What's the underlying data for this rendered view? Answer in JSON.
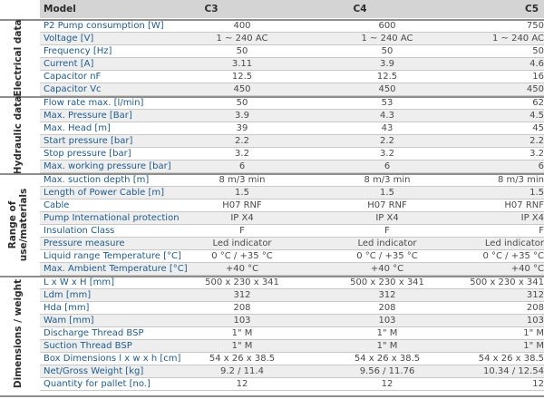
{
  "header": {
    "model_label": "Model",
    "models": [
      "C3",
      "C4",
      "C5"
    ]
  },
  "sections": [
    {
      "label": "Electrical data",
      "rows": [
        {
          "param": "P2 Pump consumption [W]",
          "values": [
            "400",
            "600",
            "750"
          ]
        },
        {
          "param": "Voltage [V]",
          "values": [
            "1 ~ 240 AC",
            "1 ~ 240 AC",
            "1 ~ 240 AC"
          ]
        },
        {
          "param": "Frequency [Hz]",
          "values": [
            "50",
            "50",
            "50"
          ]
        },
        {
          "param": "Current [A]",
          "values": [
            "3.11",
            "3.9",
            "4.6"
          ]
        },
        {
          "param": "Capacitor nF",
          "values": [
            "12.5",
            "12.5",
            "16"
          ]
        },
        {
          "param": "Capacitor Vc",
          "values": [
            "450",
            "450",
            "450"
          ]
        }
      ]
    },
    {
      "label": "Hydraulic data",
      "rows": [
        {
          "param": "Flow rate max. [l/min]",
          "values": [
            "50",
            "53",
            "62"
          ]
        },
        {
          "param": "Max. Pressure [Bar]",
          "values": [
            "3.9",
            "4.3",
            "4.5"
          ]
        },
        {
          "param": "Max. Head [m]",
          "values": [
            "39",
            "43",
            "45"
          ]
        },
        {
          "param": "Start pressure [bar]",
          "values": [
            "2.2",
            "2.2",
            "2.2"
          ]
        },
        {
          "param": "Stop pressure [bar]",
          "values": [
            "3.2",
            "3.2",
            "3.2"
          ]
        },
        {
          "param": "Max. working pressure [bar]",
          "values": [
            "6",
            "6",
            "6"
          ]
        }
      ]
    },
    {
      "label": "Range of use/materials",
      "label_lines": [
        "Range of",
        "use/materials"
      ],
      "rows": [
        {
          "param": "Max. suction depth [m]",
          "values": [
            "8 m/3 min",
            "8 m/3 min",
            "8 m/3 min"
          ]
        },
        {
          "param": "Length of Power Cable [m]",
          "values": [
            "1.5",
            "1.5",
            "1.5"
          ]
        },
        {
          "param": "Cable",
          "values": [
            "H07 RNF",
            "H07 RNF",
            "H07 RNF"
          ]
        },
        {
          "param": "Pump International protection",
          "values": [
            "IP X4",
            "IP X4",
            "IP X4"
          ]
        },
        {
          "param": "Insulation Class",
          "values": [
            "F",
            "F",
            "F"
          ]
        },
        {
          "param": "Pressure measure",
          "values": [
            "Led indicator",
            "Led indicator",
            "Led indicator"
          ]
        },
        {
          "param": "Liquid range Temperature [°C]",
          "values": [
            "0 °C / +35 °C",
            "0 °C / +35 °C",
            "0 °C / +35 °C"
          ]
        },
        {
          "param": "Max. Ambient Temperature [°C]",
          "values": [
            "+40 °C",
            "+40 °C",
            "+40 °C"
          ]
        }
      ]
    },
    {
      "label": "Dimensions / weight",
      "rows": [
        {
          "param": "L x W x H [mm]",
          "values": [
            "500 x 230 x 341",
            "500 x 230 x 341",
            "500 x 230 x 341"
          ]
        },
        {
          "param": "Ldm [mm]",
          "values": [
            "312",
            "312",
            "312"
          ]
        },
        {
          "param": "Hda [mm]",
          "values": [
            "208",
            "208",
            "208"
          ]
        },
        {
          "param": "Wam [mm]",
          "values": [
            "103",
            "103",
            "103"
          ]
        },
        {
          "param": "Discharge Thread BSP",
          "values": [
            "1\" M",
            "1\" M",
            "1\" M"
          ]
        },
        {
          "param": "Suction Thread BSP",
          "values": [
            "1\" M",
            "1\" M",
            "1\" M"
          ]
        },
        {
          "param": "Box Dimensions l x w x h  [cm]",
          "values": [
            "54 x 26 x 38.5",
            "54 x 26 x 38.5",
            "54 x 26 x 38.5"
          ]
        },
        {
          "param": "Net/Gross Weight [kg]",
          "values": [
            "9.2 / 11.4",
            "9.56 / 11.76",
            "10.34 / 12.54"
          ]
        },
        {
          "param": "Quantity for pallet [no.]",
          "values": [
            "12",
            "12",
            "12"
          ]
        }
      ]
    }
  ]
}
